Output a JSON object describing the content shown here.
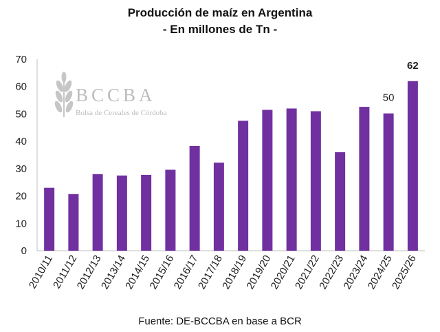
{
  "chart_data": {
    "type": "bar",
    "title": "Producción de maíz en Argentina",
    "subtitle": "- En millones de Tn -",
    "categories": [
      "2010/11",
      "2011/12",
      "2012/13",
      "2013/14",
      "2014/15",
      "2015/16",
      "2016/17",
      "2017/18",
      "2018/19",
      "2019/20",
      "2020/21",
      "2021/22",
      "2022/23",
      "2023/24",
      "2024/25",
      "2025/26"
    ],
    "values": [
      23,
      20.7,
      28,
      27.5,
      27.7,
      29.6,
      38.3,
      32.2,
      47.5,
      51.5,
      52,
      51,
      36,
      52.6,
      50.2,
      62
    ],
    "data_labels": [
      {
        "category": "2024/25",
        "text": "50",
        "bold": false
      },
      {
        "category": "2025/26",
        "text": "62",
        "bold": true
      }
    ],
    "ylim": [
      0,
      70
    ],
    "yticks": [
      0,
      10,
      20,
      30,
      40,
      50,
      60,
      70
    ],
    "grid": false,
    "bar_color": "#7030a0",
    "source": "Fuente: DE-BCCBA en base a BCR"
  },
  "watermark": {
    "name": "BCCBA",
    "subtitle": "Bolsa de Cereales de Córdoba",
    "icon": "wheat-icon"
  }
}
